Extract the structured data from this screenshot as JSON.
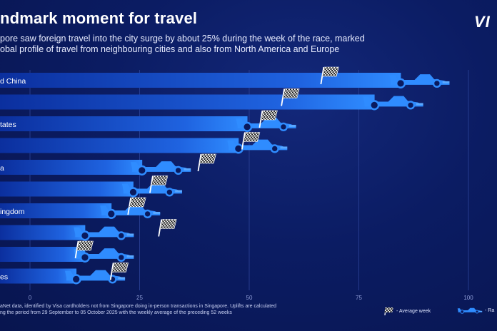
{
  "header": {
    "title": "ndmark moment for travel",
    "subtitle_line1": "pore saw foreign travel into the city surge by about 25% during the week of the race, marked",
    "subtitle_line2": "obal profile of travel from neighbouring cities and also from North America and Europe"
  },
  "brand": {
    "logo_text": "VI"
  },
  "footnote": {
    "line1": "aNet data, identified by Visa cardholders not from Singapore doing in-person transactions in Singapore. Uplifts are calculated",
    "line2": "ng the period from 29 September to 05 October 2025 with the weekly average of the preceding 52 weeks"
  },
  "legend": {
    "average_week": "- Average week",
    "race_week": "- Ra"
  },
  "colors": {
    "background": "#0a1a5e",
    "bar_start": "#0b2f9e",
    "bar_end": "#2f8cff",
    "car": "#2f8cff",
    "gridline": "#2c4398"
  },
  "chart_data": {
    "type": "bar",
    "orientation": "horizontal",
    "title": "ndmark moment for travel",
    "categories": [
      "d China",
      "",
      "tates",
      "",
      "a",
      "",
      "ingdom",
      "",
      "",
      "es"
    ],
    "series": [
      {
        "name": "Average week",
        "values": [
          67,
          58,
          53,
          49,
          39,
          28,
          23,
          30,
          11,
          19
        ]
      },
      {
        "name": "Race week",
        "values": [
          96,
          90,
          61,
          59,
          37,
          35,
          30,
          24,
          24,
          22
        ]
      }
    ],
    "x_ticks": [
      0,
      25,
      50,
      75,
      100
    ],
    "xlim": [
      0,
      100
    ],
    "grid": true,
    "legend_position": "bottom-right"
  }
}
